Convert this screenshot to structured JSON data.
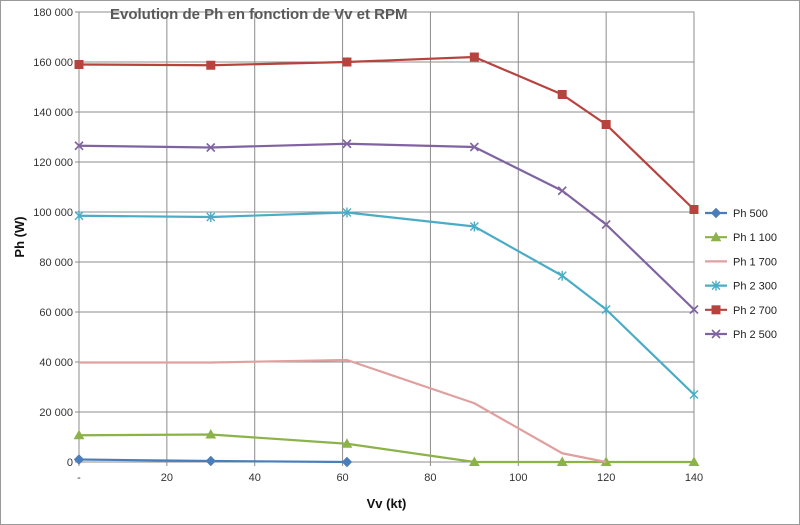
{
  "chart_data": {
    "type": "line",
    "title": "Evolution de Ph en fonction de Vv et RPM",
    "xlabel": "Vv (kt)",
    "ylabel": "Ph (W)",
    "xlim": [
      0,
      140
    ],
    "ylim": [
      0,
      180000
    ],
    "grid": true,
    "legend_position": "right",
    "x_ticks": [
      "-",
      "20",
      "40",
      "60",
      "80",
      "100",
      "120",
      "140"
    ],
    "y_ticks": [
      "0",
      "20 000",
      "40 000",
      "60 000",
      "80 000",
      "100 000",
      "120 000",
      "140 000",
      "160 000",
      "180 000"
    ],
    "y_tick_values": [
      0,
      20000,
      40000,
      60000,
      80000,
      100000,
      120000,
      140000,
      160000,
      180000
    ],
    "x_tick_values": [
      0,
      20,
      40,
      60,
      80,
      100,
      120,
      140
    ],
    "series": [
      {
        "name": "Ph 500",
        "color": "#4a7ebb",
        "marker": "diamond",
        "x": [
          0,
          30,
          61
        ],
        "values": [
          1000,
          400,
          0
        ]
      },
      {
        "name": "Ph 1 100",
        "color": "#8cb24a",
        "marker": "triangle",
        "x": [
          0,
          30,
          61,
          90,
          110,
          120,
          140
        ],
        "values": [
          10700,
          11000,
          7300,
          0,
          0,
          0,
          0
        ]
      },
      {
        "name": "Ph 1 700",
        "color": "#e0a0a0",
        "marker": "none",
        "x": [
          0,
          30,
          61,
          90,
          110,
          120
        ],
        "values": [
          39800,
          39800,
          40800,
          23500,
          3500,
          0
        ]
      },
      {
        "name": "Ph 2 300",
        "color": "#4bacc6",
        "marker": "star",
        "x": [
          0,
          30,
          61,
          90,
          110,
          120,
          140
        ],
        "values": [
          98500,
          98000,
          99800,
          94200,
          74500,
          61000,
          27000
        ]
      },
      {
        "name": "Ph 2 700",
        "color": "#b7433f",
        "marker": "square",
        "x": [
          0,
          30,
          61,
          90,
          110,
          120,
          140
        ],
        "values": [
          159000,
          158700,
          160000,
          162000,
          147000,
          135000,
          101000
        ]
      },
      {
        "name": "Ph 2 500",
        "color": "#8064a2",
        "marker": "x",
        "x": [
          0,
          30,
          61,
          90,
          110,
          120,
          140
        ],
        "values": [
          126500,
          125800,
          127300,
          126000,
          108500,
          95000,
          61000
        ]
      }
    ]
  }
}
